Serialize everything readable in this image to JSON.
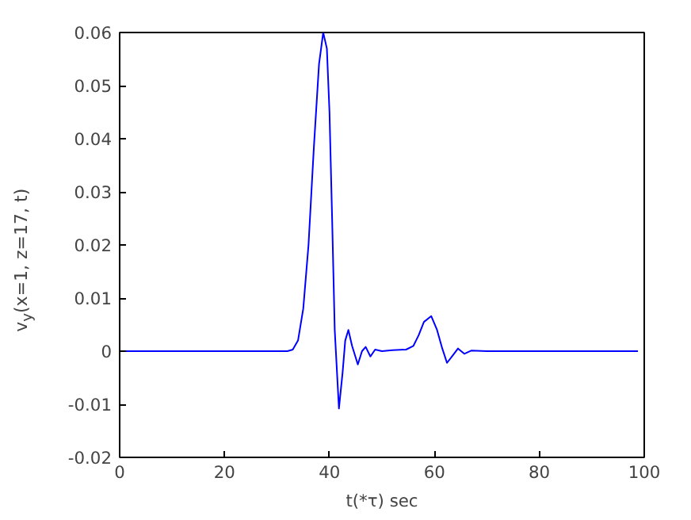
{
  "chart_data": {
    "type": "line",
    "xlabel": "t(*τ) sec",
    "ylabel": "v$_{y}$(x=1, z=17, t)",
    "xlim": [
      0,
      100
    ],
    "ylim": [
      -0.02,
      0.06
    ],
    "xticks": [
      0,
      20,
      40,
      60,
      80,
      100
    ],
    "yticks": [
      -0.02,
      -0.01,
      0,
      0.01,
      0.02,
      0.03,
      0.04,
      0.05,
      0.06
    ],
    "grid": false,
    "series": [
      {
        "color": "#0000ff",
        "x": [
          0,
          30,
          32,
          33,
          34,
          35,
          36,
          37,
          38,
          38.8,
          39.5,
          40,
          40.5,
          41,
          41.8,
          42.5,
          43,
          43.6,
          44.3,
          45.4,
          46.2,
          46.9,
          47.8,
          48.7,
          50,
          52,
          54.6,
          56,
          57,
          58,
          59.4,
          60.5,
          61.5,
          62.4,
          63.5,
          64.5,
          65.7,
          67,
          70,
          80,
          90,
          98.8
        ],
        "values": [
          0,
          0,
          0,
          0.0003,
          0.002,
          0.008,
          0.02,
          0.038,
          0.054,
          0.06,
          0.057,
          0.045,
          0.025,
          0.004,
          -0.0108,
          -0.004,
          0.002,
          0.004,
          0.001,
          -0.0025,
          0,
          0.0008,
          -0.001,
          0.0003,
          0,
          0.0002,
          0.0003,
          0.001,
          0.003,
          0.0055,
          0.0066,
          0.004,
          0.0005,
          -0.0022,
          -0.0008,
          0.0005,
          -0.0005,
          0.0001,
          0,
          0,
          0,
          0
        ]
      }
    ]
  }
}
